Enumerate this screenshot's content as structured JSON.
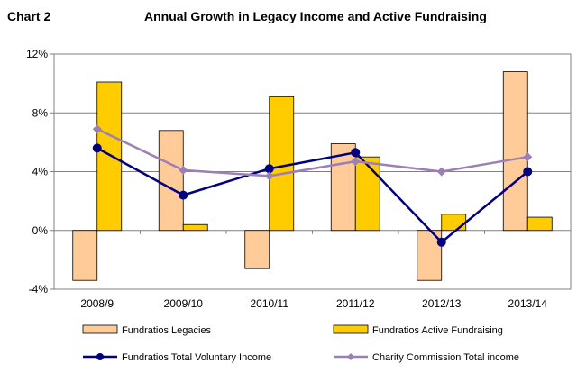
{
  "header": {
    "chart_label": "Chart 2",
    "title": "Annual Growth in Legacy Income and Active Fundraising"
  },
  "chart_data": {
    "type": "bar",
    "title": "Annual Growth in Legacy Income and Active Fundraising",
    "categories": [
      "2008/9",
      "2009/10",
      "2010/11",
      "2011/12",
      "2012/13",
      "2013/14"
    ],
    "ylim": [
      -4,
      12
    ],
    "y_ticks": [
      -4,
      0,
      4,
      8,
      12
    ],
    "y_tick_labels": [
      "-4%",
      "0%",
      "4%",
      "8%",
      "12%"
    ],
    "grid": true,
    "legend_position": "bottom",
    "series": [
      {
        "name": "Fundratios Legacies",
        "kind": "bar",
        "color": "#FFCC99",
        "values": [
          -3.4,
          6.8,
          -2.6,
          5.9,
          -3.4,
          10.8
        ]
      },
      {
        "name": "Fundratios Active Fundraising",
        "kind": "bar",
        "color": "#FFCC00",
        "values": [
          10.1,
          0.4,
          9.1,
          5.0,
          1.1,
          0.9
        ]
      },
      {
        "name": "Fundratios Total Voluntary Income",
        "kind": "line",
        "color": "#000080",
        "marker": "circle",
        "values": [
          5.6,
          2.4,
          4.2,
          5.3,
          -0.8,
          4.0
        ]
      },
      {
        "name": "Charity Commission Total income",
        "kind": "line",
        "color": "#9B7FB5",
        "marker": "diamond",
        "values": [
          6.9,
          4.1,
          3.7,
          4.7,
          4.0,
          5.0
        ]
      }
    ]
  }
}
